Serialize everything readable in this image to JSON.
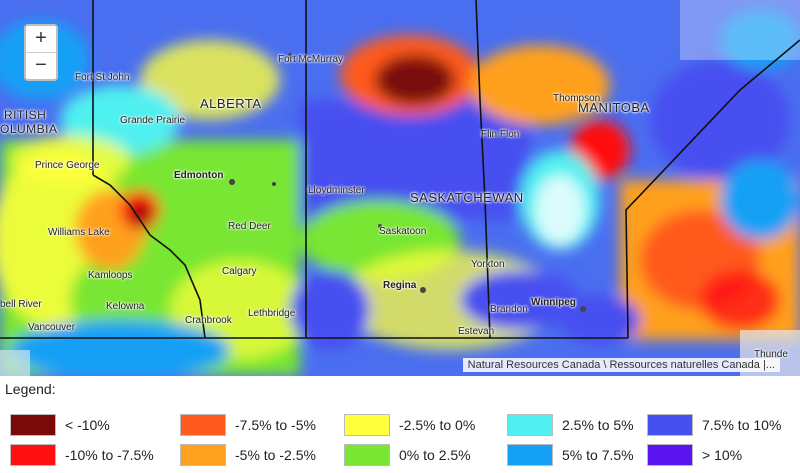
{
  "map": {
    "zoom_in": "+",
    "zoom_out": "−",
    "attribution": "Natural Resources Canada \\ Ressources naturelles Canada |...",
    "province_labels": [
      "ALBERTA",
      "SASKATCHEWAN",
      "MANITOBA",
      "RITISH",
      "OLUMBIA"
    ],
    "city_labels": [
      "Fort McMurray",
      "Fort St John",
      "Grande Prairie",
      "Thompson",
      "Flin Flon",
      "Prince George",
      "Edmonton",
      "Lloydminster",
      "Red Deer",
      "Williams Lake",
      "Saskatoon",
      "Kamloops",
      "Calgary",
      "Yorkton",
      "Regina",
      "Winnipeg",
      "Brandon",
      "Kelowna",
      "Lethbridge",
      "Cranbrook",
      "Estevan",
      "Vancouver",
      "Thunde",
      "bell River"
    ]
  },
  "legend": {
    "title": "Legend:",
    "items": [
      {
        "label": "< -10%",
        "color": "#7a0a0a"
      },
      {
        "label": "-10% to -7.5%",
        "color": "#ff1010"
      },
      {
        "label": "-7.5% to -5%",
        "color": "#ff5a1e"
      },
      {
        "label": "-5% to -2.5%",
        "color": "#ffa01e"
      },
      {
        "label": "-2.5% to 0%",
        "color": "#ffff3c"
      },
      {
        "label": "0% to 2.5%",
        "color": "#78e632"
      },
      {
        "label": "2.5% to 5%",
        "color": "#50f0f0"
      },
      {
        "label": "5% to 7.5%",
        "color": "#14a0f5"
      },
      {
        "label": "7.5% to 10%",
        "color": "#4650f0"
      },
      {
        "label": "> 10%",
        "color": "#5a14f0"
      }
    ]
  }
}
